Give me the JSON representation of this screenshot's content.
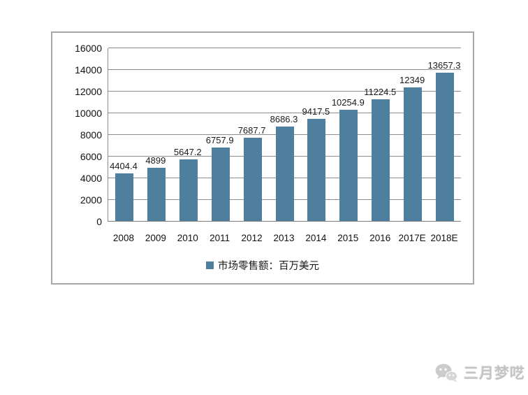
{
  "chart_data": {
    "type": "bar",
    "title": "",
    "xlabel": "",
    "ylabel": "",
    "categories": [
      "2008",
      "2009",
      "2010",
      "2011",
      "2012",
      "2013",
      "2014",
      "2015",
      "2016",
      "2017E",
      "2018E"
    ],
    "values": [
      4404.4,
      4899,
      5647.2,
      6757.9,
      7687.7,
      8686.3,
      9417.5,
      10254.9,
      11224.5,
      12349,
      13657.3
    ],
    "data_labels": [
      "4404.4",
      "4899",
      "5647.2",
      "6757.9",
      "7687.7",
      "8686.3",
      "9417.5",
      "10254.9",
      "11224.5",
      "12349",
      "13657.3"
    ],
    "ylim": [
      0,
      16000
    ],
    "ytick_step": 2000,
    "yticks": [
      "0",
      "2000",
      "4000",
      "6000",
      "8000",
      "10000",
      "12000",
      "14000",
      "16000"
    ],
    "grid": true,
    "legend": "市场零售额：百万美元",
    "legend_position": "bottom",
    "bar_color": "#4e7f9e",
    "grid_color": "#8c8c8c"
  },
  "watermark": {
    "text": "三月梦呓",
    "icon": "wechat-icon"
  }
}
